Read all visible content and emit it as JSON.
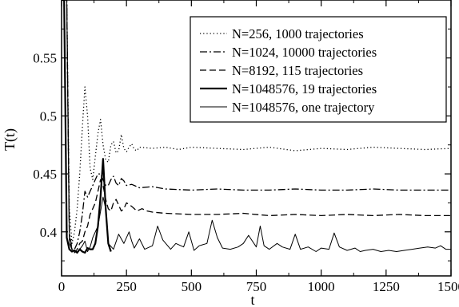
{
  "chart_data": {
    "type": "line",
    "xlabel": "t",
    "ylabel": "T(t)",
    "xlim": [
      0,
      1500
    ],
    "ylim": [
      0.362,
      0.6
    ],
    "xticks": [
      0,
      250,
      500,
      750,
      1000,
      1250,
      1500
    ],
    "xtick_labels": [
      "0",
      "250",
      "500",
      "750",
      "1000",
      "1250",
      "1500"
    ],
    "yticks": [
      0.4,
      0.45,
      0.5,
      0.55
    ],
    "ytick_labels": [
      "0.4",
      "0.45",
      "0.5",
      "0.55"
    ],
    "grid": false,
    "legend_position": "top-right",
    "series": [
      {
        "name": "N=256, 1000 trajectories",
        "style": "dotted",
        "x": [
          0,
          20,
          30,
          40,
          50,
          60,
          70,
          80,
          90,
          100,
          110,
          120,
          130,
          140,
          150,
          160,
          170,
          180,
          190,
          200,
          210,
          220,
          230,
          240,
          250,
          260,
          270,
          280,
          290,
          300,
          350,
          400,
          450,
          500,
          600,
          700,
          800,
          900,
          1000,
          1100,
          1200,
          1300,
          1400,
          1500
        ],
        "y": [
          0.6,
          0.6,
          0.42,
          0.39,
          0.4,
          0.42,
          0.45,
          0.49,
          0.525,
          0.5,
          0.455,
          0.445,
          0.465,
          0.485,
          0.497,
          0.475,
          0.462,
          0.46,
          0.475,
          0.478,
          0.468,
          0.47,
          0.484,
          0.472,
          0.469,
          0.473,
          0.476,
          0.471,
          0.47,
          0.473,
          0.472,
          0.473,
          0.471,
          0.473,
          0.472,
          0.471,
          0.473,
          0.47,
          0.472,
          0.471,
          0.473,
          0.472,
          0.471,
          0.472
        ]
      },
      {
        "name": "N=1024, 10000  trajectories",
        "style": "dash-dot",
        "x": [
          0,
          20,
          30,
          40,
          50,
          60,
          70,
          80,
          90,
          100,
          110,
          120,
          130,
          140,
          150,
          160,
          170,
          180,
          190,
          200,
          210,
          220,
          230,
          240,
          250,
          270,
          300,
          350,
          400,
          500,
          600,
          700,
          800,
          900,
          1000,
          1100,
          1200,
          1300,
          1400,
          1500
        ],
        "y": [
          0.6,
          0.6,
          0.4,
          0.385,
          0.385,
          0.39,
          0.4,
          0.415,
          0.435,
          0.43,
          0.435,
          0.44,
          0.445,
          0.45,
          0.45,
          0.445,
          0.44,
          0.44,
          0.445,
          0.448,
          0.442,
          0.44,
          0.446,
          0.444,
          0.44,
          0.441,
          0.438,
          0.439,
          0.437,
          0.436,
          0.437,
          0.436,
          0.436,
          0.437,
          0.436,
          0.436,
          0.437,
          0.436,
          0.436,
          0.436
        ]
      },
      {
        "name": "N=8192, 115 trajectories",
        "style": "dashed",
        "x": [
          0,
          20,
          30,
          40,
          50,
          60,
          70,
          80,
          90,
          100,
          110,
          120,
          130,
          140,
          150,
          160,
          170,
          180,
          190,
          200,
          210,
          220,
          230,
          240,
          250,
          270,
          290,
          310,
          330,
          350,
          400,
          500,
          600,
          700,
          800,
          900,
          1000,
          1100,
          1200,
          1300,
          1400,
          1500
        ],
        "y": [
          0.6,
          0.6,
          0.395,
          0.385,
          0.382,
          0.385,
          0.39,
          0.392,
          0.4,
          0.405,
          0.415,
          0.42,
          0.425,
          0.435,
          0.445,
          0.44,
          0.428,
          0.42,
          0.418,
          0.425,
          0.428,
          0.423,
          0.418,
          0.42,
          0.425,
          0.422,
          0.418,
          0.42,
          0.418,
          0.417,
          0.416,
          0.415,
          0.415,
          0.416,
          0.414,
          0.415,
          0.414,
          0.415,
          0.414,
          0.415,
          0.414,
          0.414
        ]
      },
      {
        "name": "N=1048576, 19 trajectories",
        "style": "solid-thick",
        "x": [
          0,
          10,
          20,
          30,
          40,
          50,
          60,
          70,
          80,
          90,
          100,
          110,
          120,
          130,
          140,
          150,
          160,
          170,
          180,
          190
        ],
        "y": [
          0.6,
          0.6,
          0.395,
          0.385,
          0.383,
          0.384,
          0.382,
          0.385,
          0.383,
          0.382,
          0.386,
          0.385,
          0.385,
          0.39,
          0.405,
          0.43,
          0.463,
          0.42,
          0.39,
          0.383
        ]
      },
      {
        "name": "N=1048576, one trajectory",
        "style": "solid-thin",
        "x": [
          0,
          20,
          30,
          40,
          50,
          60,
          70,
          80,
          90,
          100,
          110,
          120,
          140,
          160,
          170,
          180,
          200,
          220,
          240,
          260,
          270,
          280,
          300,
          320,
          350,
          370,
          390,
          420,
          440,
          470,
          490,
          510,
          530,
          560,
          580,
          600,
          620,
          650,
          680,
          700,
          720,
          750,
          765,
          780,
          800,
          830,
          850,
          880,
          900,
          920,
          950,
          980,
          1000,
          1030,
          1050,
          1070,
          1100,
          1130,
          1150,
          1170,
          1200,
          1230,
          1260,
          1290,
          1320,
          1350,
          1380,
          1410,
          1440,
          1460,
          1480,
          1500
        ],
        "y": [
          0.6,
          0.6,
          0.39,
          0.385,
          0.383,
          0.382,
          0.385,
          0.388,
          0.392,
          0.383,
          0.387,
          0.395,
          0.405,
          0.43,
          0.42,
          0.39,
          0.385,
          0.398,
          0.39,
          0.4,
          0.392,
          0.386,
          0.394,
          0.385,
          0.388,
          0.405,
          0.393,
          0.385,
          0.39,
          0.387,
          0.4,
          0.384,
          0.388,
          0.39,
          0.41,
          0.395,
          0.386,
          0.385,
          0.387,
          0.39,
          0.397,
          0.387,
          0.405,
          0.388,
          0.385,
          0.39,
          0.387,
          0.385,
          0.398,
          0.385,
          0.387,
          0.383,
          0.386,
          0.385,
          0.399,
          0.387,
          0.384,
          0.386,
          0.383,
          0.384,
          0.385,
          0.383,
          0.384,
          0.383,
          0.384,
          0.385,
          0.386,
          0.387,
          0.386,
          0.388,
          0.385,
          0.385
        ]
      }
    ]
  }
}
